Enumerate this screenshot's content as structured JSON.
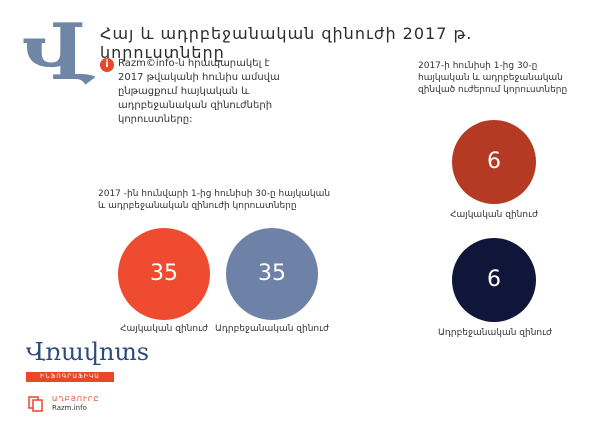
{
  "header": {
    "logo_letter": "Վ",
    "title": "Հայ և ադրբեջանական զինուժի 2017 թ. կորուստները"
  },
  "info": {
    "icon": "i",
    "text": "Razm©info-ն հրապարակել է 2017 թվականի հունիս ամսվա ընթացքում հայկական և ադրբեջանական զինուժների կորուստները:"
  },
  "left_section": {
    "label": "2017 -ին հունվարի 1-ից հունիսի 30-ը հայկական և ադրբեջանական զինուժի կորուստները",
    "armenian": {
      "value": "35",
      "caption": "Հայկական զինուժ",
      "color": "#ef4b30"
    },
    "azerbaijani": {
      "value": "35",
      "caption": "Ադրբեջանական զինուժ",
      "color": "#6d82a6"
    }
  },
  "right_section": {
    "label": "2017-ի հունիսի 1-ից 30-ը հայկական և ադրբեջանական զինված ուժերում կորուստները",
    "armenian": {
      "value": "6",
      "caption": "Հայկական զինուժ",
      "color": "#b43a24"
    },
    "azerbaijani": {
      "value": "6",
      "caption": "Ադրբեջանական զինուժ",
      "color": "#10163a"
    }
  },
  "brand": {
    "name": "Վռավոտs",
    "tagline": "ԻՆՖՈԳՐԱՖԻԿԱ"
  },
  "source": {
    "label": "ԱՂԲՅՈՒՐԸ",
    "url": "Razm.info",
    "icon": "document-stack-icon"
  }
}
